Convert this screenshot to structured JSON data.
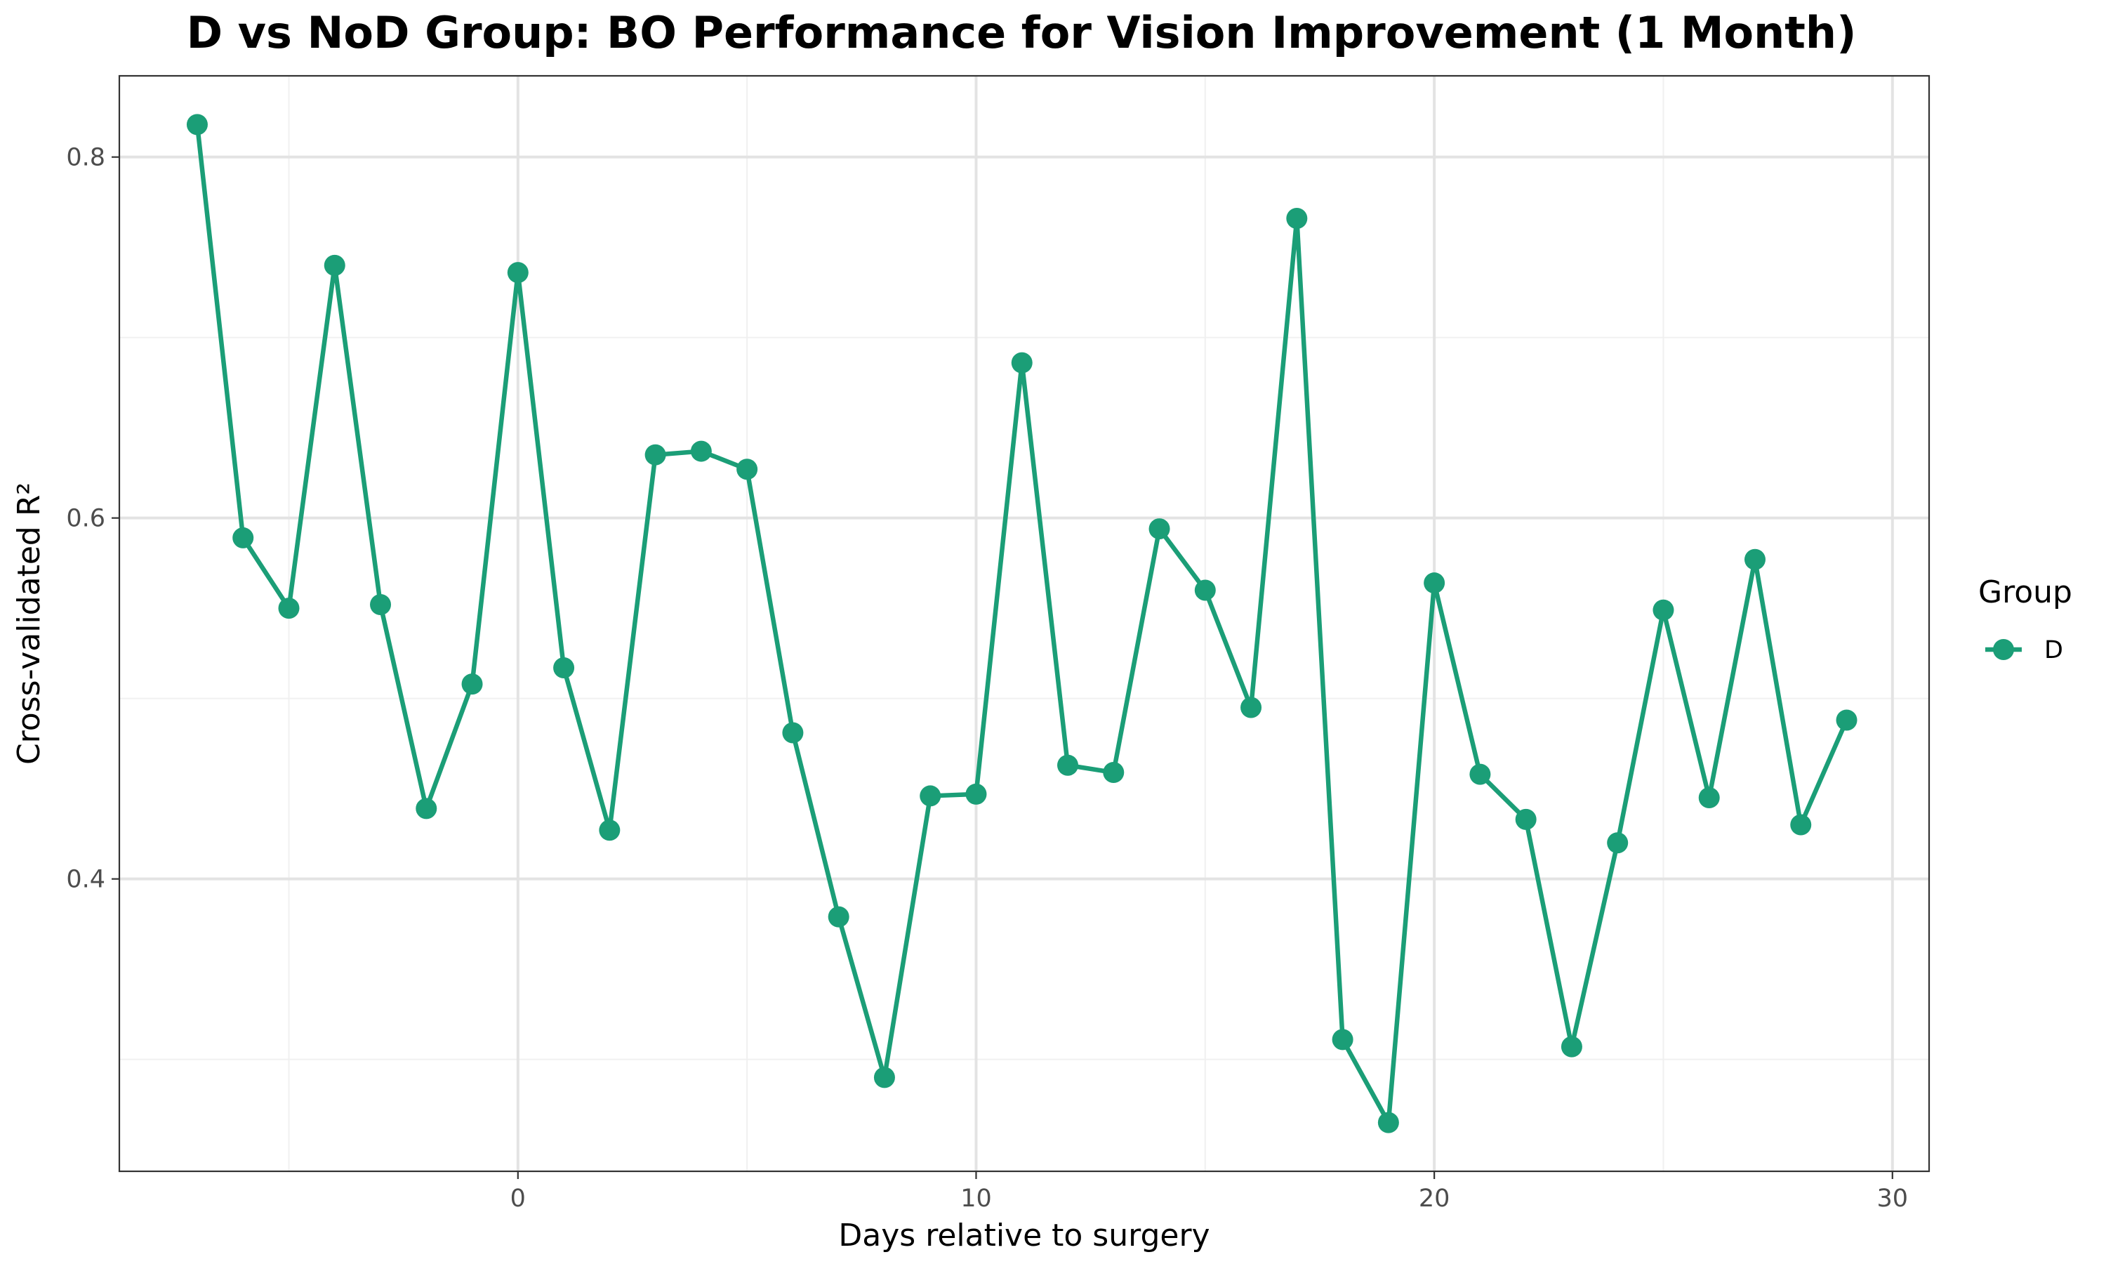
{
  "chart_data": {
    "type": "line",
    "title": "D vs NoD Group: BO Performance for Vision Improvement (1 Month)",
    "xlabel": "Days relative to surgery",
    "ylabel": "Cross-validated R²",
    "xlim": [
      -8.7,
      30.8
    ],
    "ylim": [
      0.238,
      0.845
    ],
    "x_ticks": [
      0,
      10,
      20,
      30
    ],
    "y_ticks": [
      0.4,
      0.6,
      0.8
    ],
    "x_tick_labels": [
      "0",
      "10",
      "20",
      "30"
    ],
    "y_tick_labels": [
      "0.4",
      "0.6",
      "0.8"
    ],
    "x_minor_ticks": [
      -5,
      5,
      15,
      25
    ],
    "y_minor_ticks": [
      0.3,
      0.5,
      0.7
    ],
    "grid": true,
    "legend_position": "right",
    "legend_title": "Group",
    "series": [
      {
        "name": "D",
        "color": "#1b9e77",
        "x": [
          -7,
          -6,
          -5,
          -4,
          -3,
          -2,
          -1,
          0,
          1,
          2,
          3,
          4,
          5,
          6,
          7,
          8,
          9,
          10,
          11,
          12,
          13,
          14,
          15,
          16,
          17,
          18,
          19,
          20,
          21,
          22,
          23,
          24,
          25,
          26,
          27,
          28,
          29
        ],
        "y": [
          0.818,
          0.589,
          0.55,
          0.74,
          0.552,
          0.439,
          0.508,
          0.736,
          0.517,
          0.427,
          0.635,
          0.637,
          0.627,
          0.481,
          0.379,
          0.29,
          0.446,
          0.447,
          0.686,
          0.463,
          0.459,
          0.594,
          0.56,
          0.495,
          0.766,
          0.311,
          0.265,
          0.564,
          0.458,
          0.433,
          0.307,
          0.42,
          0.549,
          0.445,
          0.577,
          0.43,
          0.488
        ]
      }
    ]
  }
}
